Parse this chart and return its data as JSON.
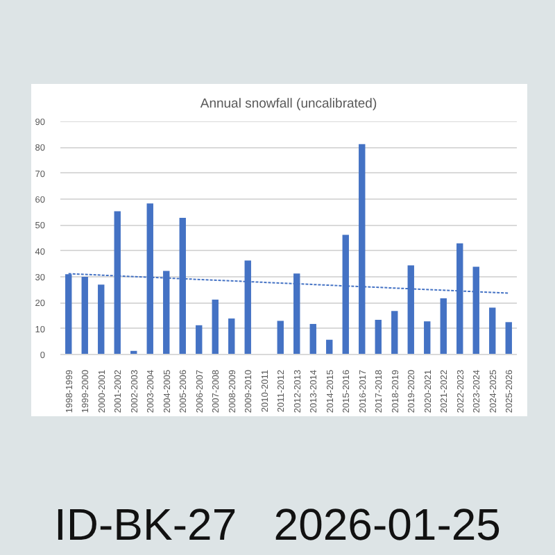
{
  "chart_data": {
    "type": "bar",
    "title": "Annual snowfall (uncalibrated)",
    "categories": [
      "1998-1999",
      "1999-2000",
      "2000-2001",
      "2001-2002",
      "2002-2003",
      "2003-2004",
      "2004-2005",
      "2005-2006",
      "2006-2007",
      "2007-2008",
      "2008-2009",
      "2009-2010",
      "2010-2011",
      "2011-2012",
      "2012-2013",
      "2013-2014",
      "2014-2015",
      "2015-2016",
      "2016-2017",
      "2017-2018",
      "2018-2019",
      "2019-2020",
      "2020-2021",
      "2021-2022",
      "2022-2023",
      "2023-2024",
      "2024-2025",
      "2025-2026"
    ],
    "series": [
      {
        "color": "#4472c4",
        "values": [
          31,
          30,
          27,
          55.3,
          1.4,
          58.3,
          32.3,
          52.8,
          11.3,
          21.2,
          13.9,
          36.3,
          null,
          13,
          31.3,
          11.8,
          5.7,
          46.2,
          81.2,
          13.4,
          16.8,
          34.4,
          12.8,
          21.7,
          42.9,
          33.9,
          18.1,
          12.5
        ]
      },
      {
        "type": "line",
        "color": "#4472c4",
        "line_style": "dotted",
        "x": [
          "1998-1999",
          "2025-2026"
        ],
        "values": [
          31.2,
          23.7
        ]
      }
    ],
    "ylim": [
      0,
      90
    ],
    "yticks": [
      0,
      10,
      20,
      30,
      40,
      50,
      60,
      70,
      80,
      90
    ],
    "grid": "y",
    "annotations": [
      "ID-BK-27   2026-01-25"
    ]
  }
}
